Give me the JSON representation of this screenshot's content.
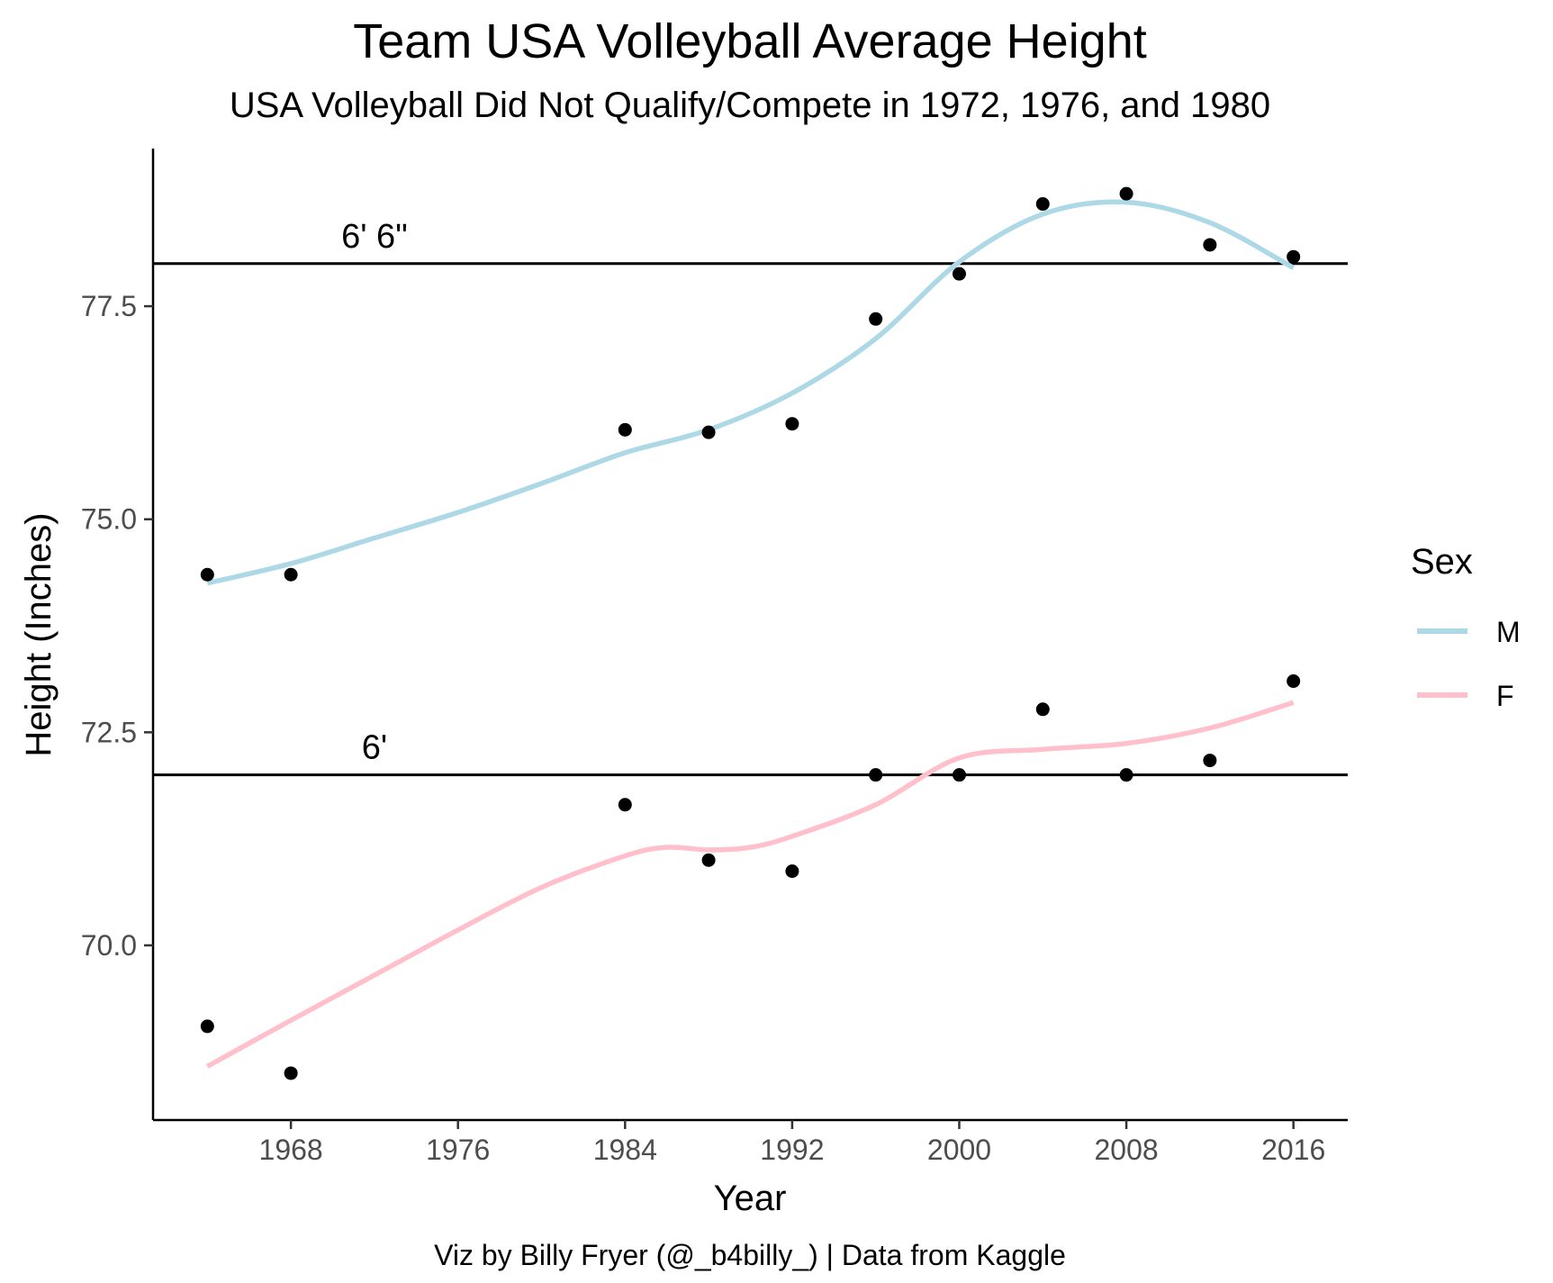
{
  "chart_data": {
    "type": "scatter",
    "title": "Team USA Volleyball Average Height",
    "subtitle": "USA Volleyball Did Not Qualify/Compete in 1972, 1976, and 1980",
    "caption": "Viz by Billy Fryer (@_b4billy_) | Data from Kaggle",
    "xlabel": "Year",
    "ylabel": "Height (Inches)",
    "xlim": [
      1961.4,
      2018.6
    ],
    "ylim": [
      67.95,
      79.35
    ],
    "x_ticks": [
      1968,
      1976,
      1984,
      1992,
      2000,
      2008,
      2016
    ],
    "x_tick_labels": [
      "1968",
      "1976",
      "1984",
      "1992",
      "2000",
      "2008",
      "2016"
    ],
    "y_ticks": [
      70.0,
      72.5,
      75.0,
      77.5
    ],
    "y_tick_labels": [
      "70.0",
      "72.5",
      "75.0",
      "77.5"
    ],
    "legend": {
      "title": "Sex",
      "position": "right",
      "entries": [
        {
          "label": "M",
          "color": "#add8e6"
        },
        {
          "label": "F",
          "color": "#ffc0cb"
        }
      ]
    },
    "series": [
      {
        "name": "M",
        "color": "#add8e6",
        "points": [
          {
            "x": 1964,
            "y": 74.35
          },
          {
            "x": 1968,
            "y": 74.35
          },
          {
            "x": 1984,
            "y": 76.05
          },
          {
            "x": 1988,
            "y": 76.02
          },
          {
            "x": 1992,
            "y": 76.12
          },
          {
            "x": 1996,
            "y": 77.35
          },
          {
            "x": 2000,
            "y": 77.88
          },
          {
            "x": 2004,
            "y": 78.7
          },
          {
            "x": 2008,
            "y": 78.82
          },
          {
            "x": 2012,
            "y": 78.22
          },
          {
            "x": 2016,
            "y": 78.08
          }
        ],
        "smooth": [
          {
            "x": 1964,
            "y": 74.25
          },
          {
            "x": 1968,
            "y": 74.48
          },
          {
            "x": 1972,
            "y": 74.78
          },
          {
            "x": 1976,
            "y": 75.08
          },
          {
            "x": 1980,
            "y": 75.42
          },
          {
            "x": 1984,
            "y": 75.78
          },
          {
            "x": 1988,
            "y": 76.05
          },
          {
            "x": 1992,
            "y": 76.48
          },
          {
            "x": 1996,
            "y": 77.12
          },
          {
            "x": 2000,
            "y": 78.02
          },
          {
            "x": 2004,
            "y": 78.58
          },
          {
            "x": 2008,
            "y": 78.72
          },
          {
            "x": 2012,
            "y": 78.48
          },
          {
            "x": 2016,
            "y": 77.95
          }
        ]
      },
      {
        "name": "F",
        "color": "#ffc0cb",
        "points": [
          {
            "x": 1964,
            "y": 69.05
          },
          {
            "x": 1968,
            "y": 68.5
          },
          {
            "x": 1984,
            "y": 71.65
          },
          {
            "x": 1988,
            "y": 71.0
          },
          {
            "x": 1992,
            "y": 70.87
          },
          {
            "x": 1996,
            "y": 72.0
          },
          {
            "x": 2000,
            "y": 72.0
          },
          {
            "x": 2004,
            "y": 72.77
          },
          {
            "x": 2008,
            "y": 72.0
          },
          {
            "x": 2012,
            "y": 72.17
          },
          {
            "x": 2016,
            "y": 73.1
          }
        ],
        "smooth": [
          {
            "x": 1964,
            "y": 68.58
          },
          {
            "x": 1968,
            "y": 69.12
          },
          {
            "x": 1972,
            "y": 69.65
          },
          {
            "x": 1976,
            "y": 70.18
          },
          {
            "x": 1980,
            "y": 70.68
          },
          {
            "x": 1984,
            "y": 71.05
          },
          {
            "x": 1986,
            "y": 71.15
          },
          {
            "x": 1988,
            "y": 71.12
          },
          {
            "x": 1990,
            "y": 71.15
          },
          {
            "x": 1992,
            "y": 71.28
          },
          {
            "x": 1996,
            "y": 71.65
          },
          {
            "x": 2000,
            "y": 72.2
          },
          {
            "x": 2004,
            "y": 72.3
          },
          {
            "x": 2008,
            "y": 72.37
          },
          {
            "x": 2012,
            "y": 72.55
          },
          {
            "x": 2016,
            "y": 72.85
          }
        ]
      }
    ],
    "reference_lines": [
      {
        "y": 78.0,
        "label": "6' 6\"",
        "label_x": 1972
      },
      {
        "y": 72.0,
        "label": "6'",
        "label_x": 1972
      }
    ],
    "point_color": "#000000",
    "grid": false
  }
}
